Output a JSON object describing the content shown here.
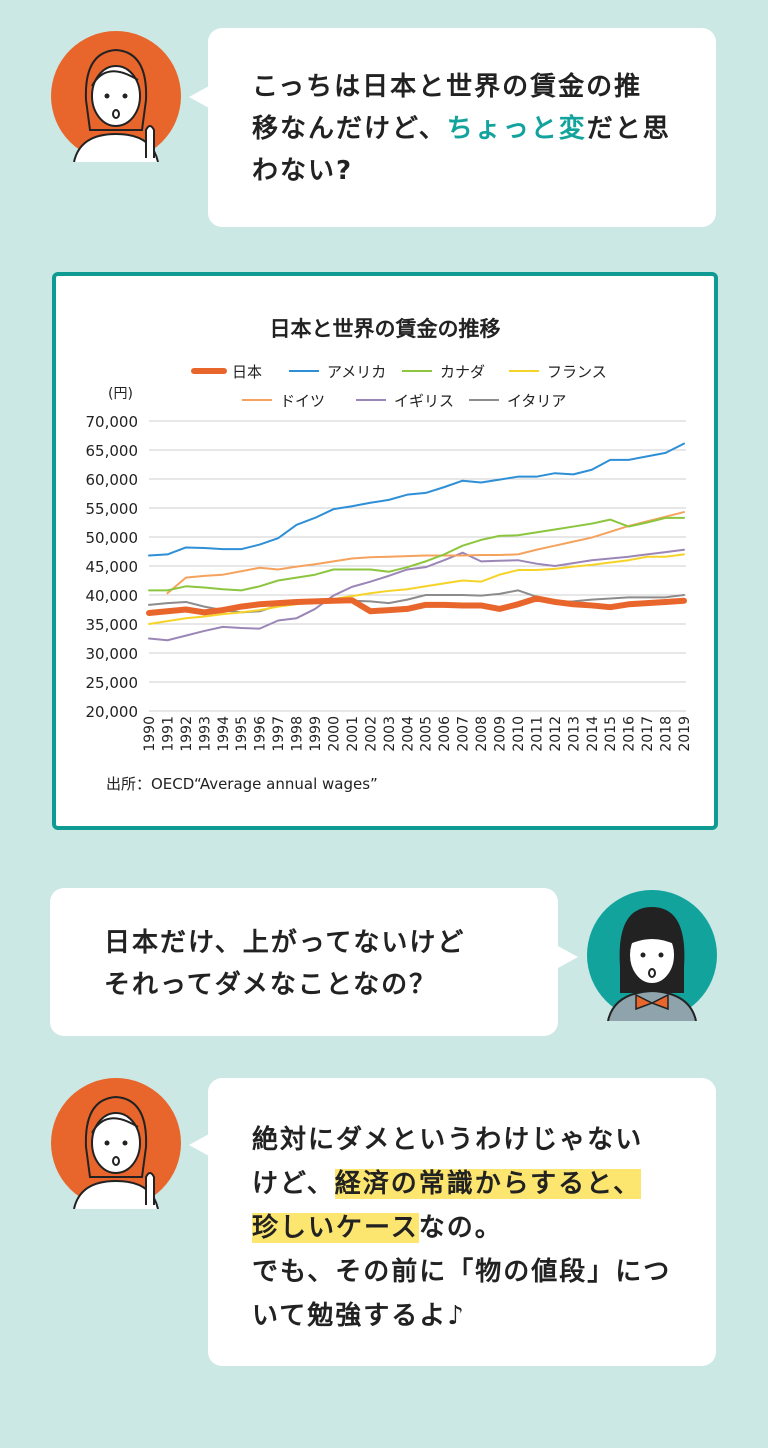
{
  "dialogue": [
    {
      "speaker": "teacher",
      "lines": [
        [
          "こっちは日本と世界の賃金の推"
        ],
        [
          "移なんだけど、",
          "ちょっと変",
          "だと思"
        ],
        [
          "わない?"
        ]
      ]
    },
    {
      "speaker": "student",
      "lines": [
        [
          "日本だけ、上がってないけど"
        ],
        [
          "それってダメなことなの？"
        ]
      ]
    },
    {
      "speaker": "teacher",
      "lines": [
        [
          "絶対にダメというわけじゃない"
        ],
        [
          "けど、",
          "経済の常識からすると、"
        ],
        [
          "珍しいケース",
          "なの。"
        ],
        [
          "でも、その前に「物の値段」につ"
        ],
        [
          "いて勉強するよ♪"
        ]
      ]
    }
  ],
  "chart_data": {
    "type": "line",
    "title": "日本と世界の賃金の推移",
    "y_unit": "(円)",
    "source": "出所：OECD“Average annual wages”",
    "categories": [
      "1990",
      "1991",
      "1992",
      "1993",
      "1994",
      "1995",
      "1996",
      "1997",
      "1998",
      "1999",
      "2000",
      "2001",
      "2002",
      "2003",
      "2004",
      "2005",
      "2006",
      "2007",
      "2008",
      "2009",
      "2010",
      "2011",
      "2012",
      "2013",
      "2014",
      "2015",
      "2016",
      "2017",
      "2018",
      "2019"
    ],
    "ylim": [
      20000,
      70000
    ],
    "yticks": [
      {
        "value": 20000,
        "label": "20,000"
      },
      {
        "value": 25000,
        "label": "25,000"
      },
      {
        "value": 30000,
        "label": "30,000"
      },
      {
        "value": 35000,
        "label": "35,000"
      },
      {
        "value": 40000,
        "label": "40,000"
      },
      {
        "value": 45000,
        "label": "45,000"
      },
      {
        "value": 50000,
        "label": "50,000"
      },
      {
        "value": 55000,
        "label": "55,000"
      },
      {
        "value": 60000,
        "label": "60,000"
      },
      {
        "value": 65000,
        "label": "65,000"
      },
      {
        "value": 70000,
        "label": "70,000"
      }
    ],
    "grid": true,
    "series": [
      {
        "name": "日本",
        "color": "#e8662b",
        "values": [
          36900,
          37200,
          37500,
          37000,
          37400,
          38000,
          38400,
          38600,
          38800,
          38900,
          39000,
          39100,
          37200,
          37400,
          37600,
          38300,
          38300,
          38200,
          38200,
          37600,
          38400,
          39400,
          38800,
          38400,
          38200,
          37900,
          38400,
          38600,
          38800,
          39000
        ]
      },
      {
        "name": "アメリカ",
        "color": "#2e8fd6",
        "values": [
          46800,
          47000,
          48200,
          48100,
          47900,
          47900,
          48700,
          49800,
          52100,
          53300,
          54800,
          55300,
          55900,
          56400,
          57300,
          57600,
          58600,
          59700,
          59400,
          59900,
          60400,
          60400,
          61000,
          60800,
          61600,
          63300,
          63300,
          63900,
          64500,
          66100
        ]
      },
      {
        "name": "カナダ",
        "color": "#8cc63e",
        "values": [
          40800,
          40800,
          41500,
          41300,
          41000,
          40800,
          41500,
          42500,
          43000,
          43500,
          44400,
          44400,
          44400,
          44000,
          44800,
          45800,
          47000,
          48500,
          49500,
          50200,
          50300,
          50800,
          51300,
          51800,
          52300,
          53000,
          51800,
          52500,
          53300,
          53300
        ]
      },
      {
        "name": "フランス",
        "color": "#f6d327",
        "values": [
          35000,
          35500,
          36000,
          36300,
          36700,
          37000,
          37400,
          38000,
          38400,
          38800,
          39300,
          39800,
          40300,
          40700,
          41000,
          41500,
          42000,
          42500,
          42300,
          43500,
          44300,
          44300,
          44500,
          44900,
          45200,
          45600,
          46000,
          46600,
          46600,
          47000
        ]
      },
      {
        "name": "ドイツ",
        "color": "#f5a25d",
        "values": [
          null,
          40300,
          43000,
          43300,
          43500,
          44100,
          44700,
          44400,
          44900,
          45300,
          45800,
          46300,
          46500,
          46600,
          46700,
          46800,
          46800,
          46800,
          46900,
          46900,
          47000,
          47800,
          48500,
          49200,
          49900,
          50900,
          51900,
          52700,
          53500,
          54300
        ]
      },
      {
        "name": "イギリス",
        "color": "#9b86b8",
        "values": [
          32500,
          32200,
          33000,
          33800,
          34500,
          34300,
          34200,
          35600,
          36000,
          37600,
          39900,
          41400,
          42300,
          43300,
          44400,
          44800,
          46000,
          47300,
          45800,
          45900,
          46000,
          45400,
          45000,
          45500,
          46000,
          46300,
          46600,
          47000,
          47400,
          47800
        ]
      },
      {
        "name": "イタリア",
        "color": "#8c8c8c",
        "values": [
          38300,
          38600,
          38800,
          38000,
          37400,
          37000,
          37200,
          38200,
          38800,
          38900,
          39100,
          39000,
          38900,
          38600,
          39200,
          40000,
          40000,
          40000,
          39900,
          40200,
          40800,
          39700,
          38700,
          38900,
          39200,
          39400,
          39600,
          39600,
          39600,
          40000
        ]
      }
    ]
  }
}
